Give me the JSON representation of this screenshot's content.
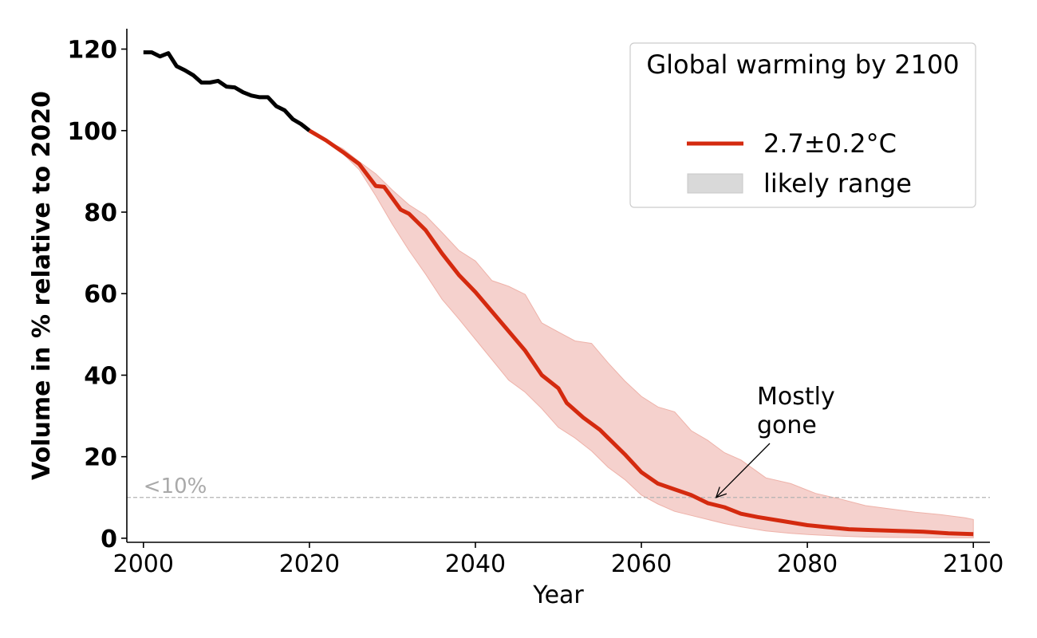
{
  "chart_data": {
    "type": "line",
    "xlabel": "Year",
    "ylabel": "Volume in % relative to 2020",
    "xlim": [
      1998,
      2102
    ],
    "ylim": [
      -1,
      125
    ],
    "xticks": [
      2000,
      2020,
      2040,
      2060,
      2080,
      2100
    ],
    "yticks": [
      0,
      20,
      40,
      60,
      80,
      100,
      120
    ],
    "xtick_labels": [
      "2000",
      "2020",
      "2040",
      "2060",
      "2080",
      "2100"
    ],
    "ytick_labels": [
      "0",
      "20",
      "40",
      "60",
      "80",
      "100",
      "120"
    ],
    "grid": false,
    "series": [
      {
        "name": "observed",
        "color": "#000000",
        "x": [
          2000,
          2001,
          2002,
          2003,
          2004,
          2005,
          2006,
          2007,
          2008,
          2009,
          2010,
          2011,
          2012,
          2013,
          2014,
          2015,
          2016,
          2017,
          2018,
          2019,
          2020
        ],
        "values": [
          119.2,
          119.2,
          118.2,
          119.0,
          115.8,
          114.8,
          113.6,
          111.8,
          111.8,
          112.2,
          110.8,
          110.6,
          109.4,
          108.6,
          108.2,
          108.2,
          106.0,
          105.0,
          102.8,
          101.6,
          100.0
        ]
      },
      {
        "name": "2.7±0.2°C",
        "color": "#d42a0f",
        "x": [
          2020,
          2022,
          2024,
          2026,
          2028,
          2029,
          2031,
          2032,
          2034,
          2036,
          2038,
          2040,
          2042,
          2044,
          2046,
          2048,
          2050,
          2051,
          2053,
          2055,
          2056,
          2058,
          2060,
          2062,
          2064,
          2066,
          2068,
          2070,
          2072,
          2074,
          2077,
          2080,
          2082,
          2085,
          2088,
          2091,
          2094,
          2097,
          2100
        ],
        "values": [
          100.0,
          97.6,
          94.8,
          91.8,
          86.4,
          86.2,
          80.6,
          79.6,
          75.6,
          69.8,
          64.6,
          60.4,
          55.6,
          50.8,
          46.0,
          40.0,
          36.8,
          33.2,
          29.6,
          26.6,
          24.6,
          20.6,
          16.2,
          13.4,
          12.0,
          10.6,
          8.6,
          7.6,
          6.0,
          5.2,
          4.2,
          3.2,
          2.8,
          2.2,
          2.0,
          1.8,
          1.6,
          1.2,
          1.0
        ]
      }
    ],
    "likely_range": {
      "name": "likely range",
      "color": "#f5d1cd",
      "x": [
        2020,
        2022,
        2024,
        2026,
        2028,
        2030,
        2032,
        2034,
        2036,
        2038,
        2040,
        2042,
        2044,
        2046,
        2048,
        2050,
        2052,
        2054,
        2056,
        2058,
        2060,
        2062,
        2064,
        2066,
        2068,
        2070,
        2072,
        2075,
        2078,
        2081,
        2084,
        2087,
        2090,
        2093,
        2096,
        2099,
        2100
      ],
      "upper": [
        100.0,
        97.6,
        95.6,
        92.4,
        89.4,
        85.4,
        81.8,
        79.2,
        75.0,
        70.6,
        68.0,
        63.2,
        61.8,
        59.8,
        52.8,
        50.6,
        48.4,
        47.8,
        43.0,
        38.6,
        34.8,
        32.2,
        31.0,
        26.4,
        24.0,
        21.0,
        19.2,
        14.8,
        13.4,
        11.0,
        9.6,
        8.0,
        7.2,
        6.4,
        5.8,
        5.0,
        4.6
      ],
      "lower": [
        100.0,
        97.4,
        94.4,
        90.4,
        84.0,
        77.0,
        70.6,
        64.8,
        58.6,
        53.8,
        48.8,
        43.8,
        38.8,
        35.8,
        31.8,
        27.2,
        24.6,
        21.4,
        17.4,
        14.4,
        10.6,
        8.4,
        6.6,
        5.6,
        4.6,
        3.6,
        2.8,
        1.8,
        1.2,
        0.8,
        0.5,
        0.3,
        0.2,
        0.15,
        0.1,
        0.1,
        0.1
      ]
    },
    "reference_line": {
      "y": 10,
      "label": "<10%",
      "color": "#b3b3b3"
    },
    "annotation": {
      "lines": [
        "Mostly",
        "gone"
      ],
      "target_x": 2069,
      "target_y": 10
    },
    "legend": {
      "title": "Global warming by 2100",
      "placement": "top-right",
      "entries": [
        "2.7±0.2°C",
        "likely range"
      ],
      "patch_color": "#d9d9d9"
    }
  }
}
